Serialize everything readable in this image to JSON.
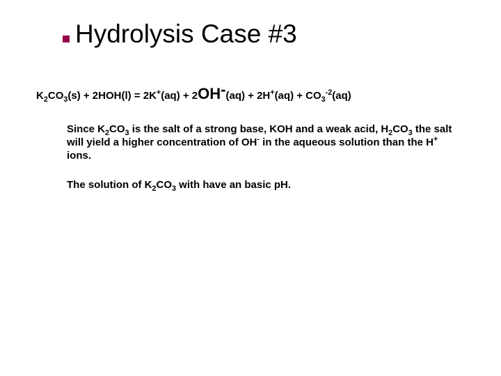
{
  "title": "Hydrolysis Case #3",
  "equation": {
    "lhs_1": "K",
    "lhs_1_sub": "2",
    "lhs_2": "CO",
    "lhs_2_sub": "3",
    "lhs_3": "(s) + 2HOH(l)  =  2K",
    "lhs_3_sup": "+",
    "lhs_4": "(aq) + 2",
    "big_oh": "OH",
    "big_oh_sup": "-",
    "rhs_1": "(aq) + 2H",
    "rhs_1_sup": "+",
    "rhs_2": "(aq) + CO",
    "rhs_2_sub": "3",
    "rhs_2_sup": "-2",
    "rhs_3": "(aq)"
  },
  "para1": {
    "t1": "Since K",
    "t1_sub": "2",
    "t2": "CO",
    "t2_sub": "3",
    "t3": " is the salt of a strong base, KOH and a weak acid, H",
    "t3_sub": "2",
    "t4": "CO",
    "t4_sub": "3",
    "t5": " the salt will yield a higher concentration of OH",
    "t5_sup": "-",
    "t6": " in the aqueous solution than the H",
    "t6_sup": "+",
    "t7": " ions."
  },
  "para2": {
    "t1": "The solution of K",
    "t1_sub": "2",
    "t2": "CO",
    "t2_sub": "3",
    "t3": " with have an basic pH."
  },
  "colors": {
    "bullet": "#99004d",
    "text": "#000000",
    "background": "#ffffff"
  }
}
